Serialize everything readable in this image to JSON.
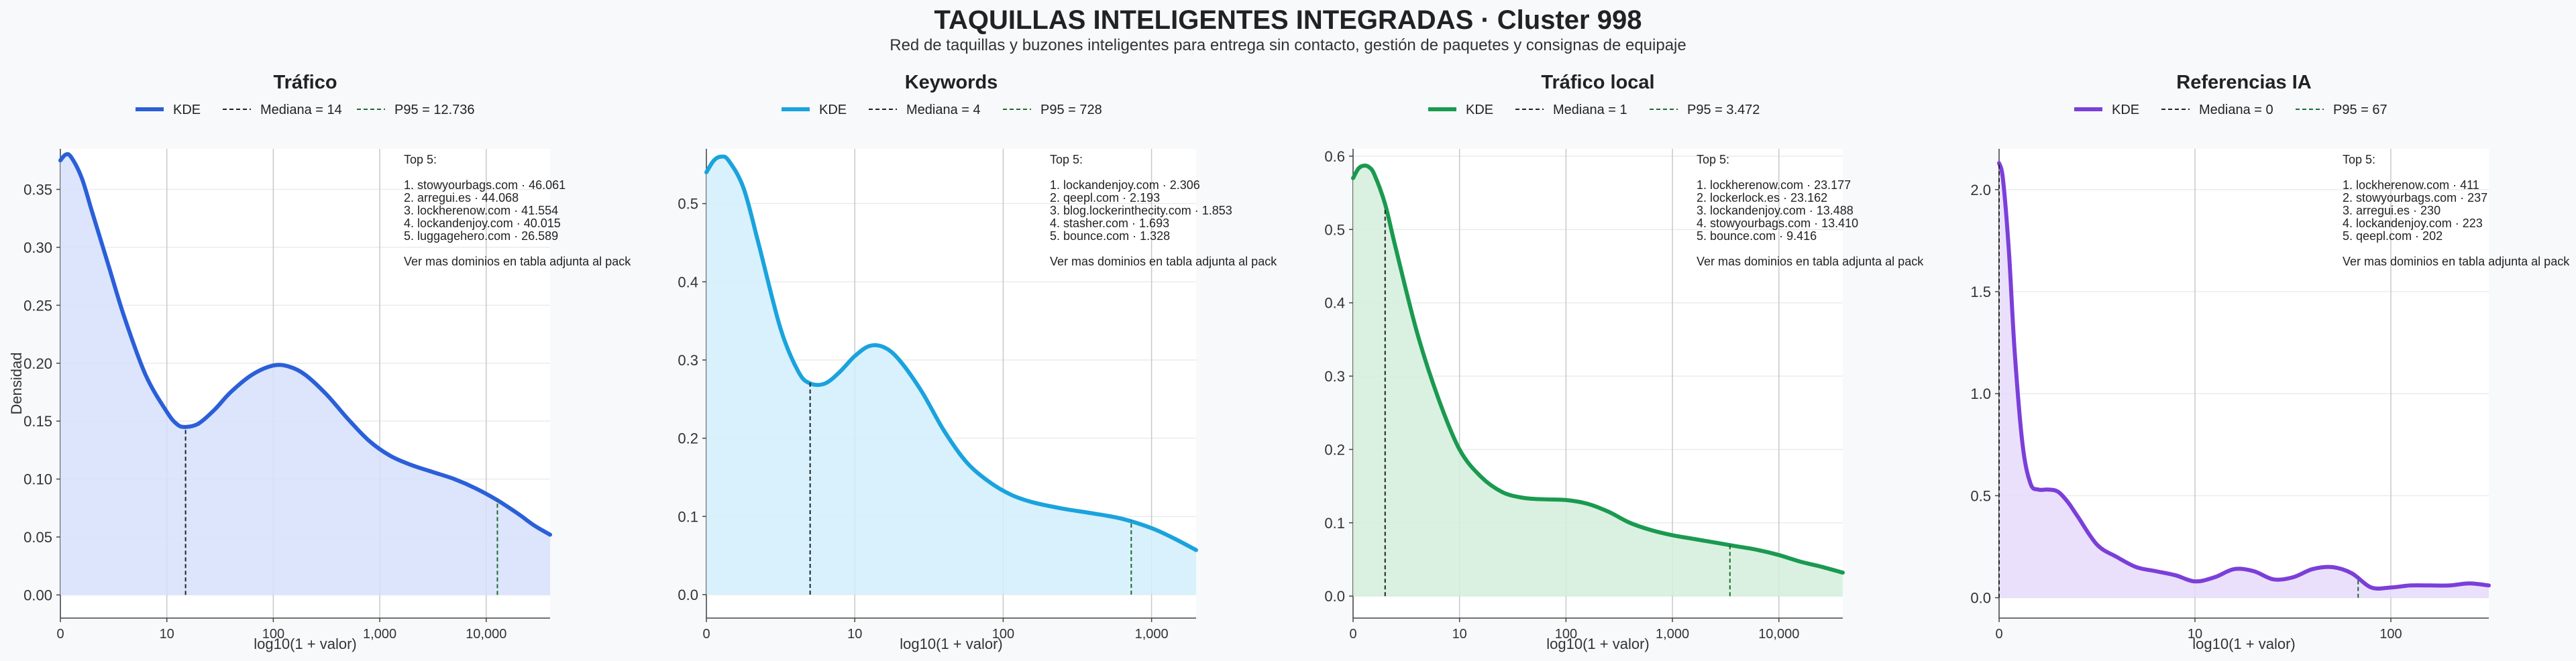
{
  "title": "TAQUILLAS INTELIGENTES INTEGRADAS · Cluster 998",
  "subtitle": "Red de taquillas y buzones inteligentes para entrega sin contacto, gestión de paquetes y consignas de equipaje",
  "chart_data": [
    {
      "type": "area",
      "title": "Tráfico",
      "xlabel": "log10(1 + valor)",
      "ylabel": "Densidad",
      "color": "#2b5fd9",
      "fill": "#d6e0fa",
      "legend": {
        "kde": "KDE",
        "median": "Mediana = 14",
        "p95": "P95 = 12.736"
      },
      "xlim": [
        0,
        4.6
      ],
      "ylim": [
        -0.02,
        0.385
      ],
      "yticks": [
        0.0,
        0.05,
        0.1,
        0.15,
        0.2,
        0.25,
        0.3,
        0.35
      ],
      "ytick_labels": [
        "0.00",
        "0.05",
        "0.10",
        "0.15",
        "0.20",
        "0.25",
        "0.30",
        "0.35"
      ],
      "xticks": [
        0,
        1,
        2,
        3,
        4
      ],
      "xtick_labels": [
        "0",
        "10",
        "100",
        "1,000",
        "10,000"
      ],
      "x": [
        0,
        0.05,
        0.1,
        0.2,
        0.3,
        0.45,
        0.6,
        0.8,
        1.0,
        1.1,
        1.18,
        1.3,
        1.45,
        1.6,
        1.8,
        2.0,
        2.15,
        2.3,
        2.5,
        2.7,
        2.9,
        3.1,
        3.3,
        3.5,
        3.7,
        3.9,
        4.1,
        4.3,
        4.45,
        4.6
      ],
      "y": [
        0.375,
        0.38,
        0.378,
        0.36,
        0.33,
        0.285,
        0.24,
        0.19,
        0.158,
        0.147,
        0.145,
        0.148,
        0.16,
        0.175,
        0.19,
        0.198,
        0.197,
        0.19,
        0.173,
        0.152,
        0.133,
        0.12,
        0.112,
        0.106,
        0.1,
        0.092,
        0.082,
        0.07,
        0.06,
        0.052
      ],
      "median_x": 1.176,
      "median_y": 0.145,
      "p95_x": 4.105,
      "p95_y": 0.082,
      "top_title": "Top 5:",
      "top_items": [
        "1. stowyourbags.com · 46.061",
        "2. arregui.es · 44.068",
        "3. lockherenow.com · 41.554",
        "4. lockandenjoy.com · 40.015",
        "5. luggagehero.com · 26.589"
      ],
      "top_note": "Ver mas dominios en tabla adjunta al pack"
    },
    {
      "type": "area",
      "title": "Keywords",
      "xlabel": "log10(1 + valor)",
      "ylabel": "",
      "color": "#1aa3dd",
      "fill": "#d1eefb",
      "legend": {
        "kde": "KDE",
        "median": "Mediana = 4",
        "p95": "P95 = 728"
      },
      "xlim": [
        0,
        3.3
      ],
      "ylim": [
        -0.03,
        0.57
      ],
      "yticks": [
        0.0,
        0.1,
        0.2,
        0.3,
        0.4,
        0.5
      ],
      "ytick_labels": [
        "0.0",
        "0.1",
        "0.2",
        "0.3",
        "0.4",
        "0.5"
      ],
      "xticks": [
        0,
        1,
        2,
        3
      ],
      "xtick_labels": [
        "0",
        "10",
        "100",
        "1,000"
      ],
      "x": [
        0,
        0.05,
        0.1,
        0.15,
        0.25,
        0.35,
        0.5,
        0.62,
        0.7,
        0.8,
        0.9,
        1.0,
        1.1,
        1.2,
        1.3,
        1.45,
        1.6,
        1.75,
        1.9,
        2.05,
        2.2,
        2.4,
        2.6,
        2.8,
        3.0,
        3.15,
        3.3
      ],
      "y": [
        0.54,
        0.555,
        0.56,
        0.555,
        0.52,
        0.45,
        0.34,
        0.285,
        0.27,
        0.27,
        0.285,
        0.305,
        0.318,
        0.316,
        0.3,
        0.26,
        0.21,
        0.17,
        0.145,
        0.128,
        0.118,
        0.11,
        0.104,
        0.097,
        0.085,
        0.072,
        0.057
      ],
      "median_x": 0.699,
      "median_y": 0.272,
      "p95_x": 2.863,
      "p95_y": 0.095,
      "top_title": "Top 5:",
      "top_items": [
        "1. lockandenjoy.com · 2.306",
        "2. qeepl.com · 2.193",
        "3. blog.lockerinthecity.com · 1.853",
        "4. stasher.com · 1.693",
        "5. bounce.com · 1.328"
      ],
      "top_note": "Ver mas dominios en tabla adjunta al pack"
    },
    {
      "type": "area",
      "title": "Tráfico local",
      "xlabel": "log10(1 + valor)",
      "ylabel": "",
      "color": "#1a9a50",
      "fill": "#d4eedc",
      "legend": {
        "kde": "KDE",
        "median": "Mediana = 1",
        "p95": "P95 = 3.472"
      },
      "xlim": [
        0,
        4.6
      ],
      "ylim": [
        -0.03,
        0.61
      ],
      "yticks": [
        0.0,
        0.1,
        0.2,
        0.3,
        0.4,
        0.5,
        0.6
      ],
      "ytick_labels": [
        "0.0",
        "0.1",
        "0.2",
        "0.3",
        "0.4",
        "0.5",
        "0.6"
      ],
      "xticks": [
        0,
        1,
        2,
        3,
        4
      ],
      "xtick_labels": [
        "0",
        "10",
        "100",
        "1,000",
        "10,000"
      ],
      "x": [
        0,
        0.05,
        0.1,
        0.15,
        0.2,
        0.3,
        0.4,
        0.6,
        0.8,
        1.0,
        1.2,
        1.4,
        1.6,
        1.8,
        2.0,
        2.2,
        2.4,
        2.6,
        2.8,
        3.0,
        3.2,
        3.4,
        3.6,
        3.8,
        4.0,
        4.2,
        4.4,
        4.6
      ],
      "y": [
        0.57,
        0.583,
        0.587,
        0.585,
        0.575,
        0.535,
        0.475,
        0.36,
        0.27,
        0.2,
        0.163,
        0.142,
        0.134,
        0.132,
        0.131,
        0.126,
        0.115,
        0.1,
        0.09,
        0.083,
        0.078,
        0.073,
        0.068,
        0.063,
        0.056,
        0.047,
        0.04,
        0.032
      ],
      "median_x": 0.301,
      "median_y": 0.53,
      "p95_x": 3.54,
      "p95_y": 0.07,
      "top_title": "Top 5:",
      "top_items": [
        "1. lockherenow.com · 23.177",
        "2. lockerlock.es · 23.162",
        "3. lockandenjoy.com · 13.488",
        "4. stowyourbags.com · 13.410",
        "5. bounce.com · 9.416"
      ],
      "top_note": "Ver mas dominios en tabla adjunta al pack"
    },
    {
      "type": "area",
      "title": "Referencias IA",
      "xlabel": "log10(1 + valor)",
      "ylabel": "",
      "color": "#7b3fd9",
      "fill": "#e6dafa",
      "legend": {
        "kde": "KDE",
        "median": "Mediana = 0",
        "p95": "P95 = 67"
      },
      "xlim": [
        0,
        2.5
      ],
      "ylim": [
        -0.1,
        2.2
      ],
      "yticks": [
        0.0,
        0.5,
        1.0,
        1.5,
        2.0
      ],
      "ytick_labels": [
        "0.0",
        "0.5",
        "1.0",
        "1.5",
        "2.0"
      ],
      "xticks": [
        0,
        1,
        2
      ],
      "xtick_labels": [
        "0",
        "10",
        "100"
      ],
      "x": [
        0,
        0.02,
        0.05,
        0.08,
        0.12,
        0.16,
        0.2,
        0.25,
        0.3,
        0.35,
        0.4,
        0.5,
        0.6,
        0.7,
        0.8,
        0.9,
        1.0,
        1.1,
        1.2,
        1.3,
        1.4,
        1.5,
        1.6,
        1.7,
        1.8,
        1.9,
        2.0,
        2.1,
        2.2,
        2.3,
        2.4,
        2.5
      ],
      "y": [
        2.13,
        2.05,
        1.7,
        1.2,
        0.75,
        0.56,
        0.53,
        0.53,
        0.52,
        0.47,
        0.4,
        0.26,
        0.2,
        0.15,
        0.13,
        0.11,
        0.08,
        0.1,
        0.14,
        0.13,
        0.09,
        0.1,
        0.14,
        0.15,
        0.12,
        0.05,
        0.05,
        0.06,
        0.06,
        0.06,
        0.07,
        0.06
      ],
      "median_x": 0,
      "median_y": 2.13,
      "p95_x": 1.833,
      "p95_y": 0.1,
      "top_title": "Top 5:",
      "top_items": [
        "1. lockherenow.com · 411",
        "2. stowyourbags.com · 237",
        "3. arregui.es · 230",
        "4. lockandenjoy.com · 223",
        "5. qeepl.com · 202"
      ],
      "top_note": "Ver mas dominios en tabla adjunta al pack"
    }
  ]
}
